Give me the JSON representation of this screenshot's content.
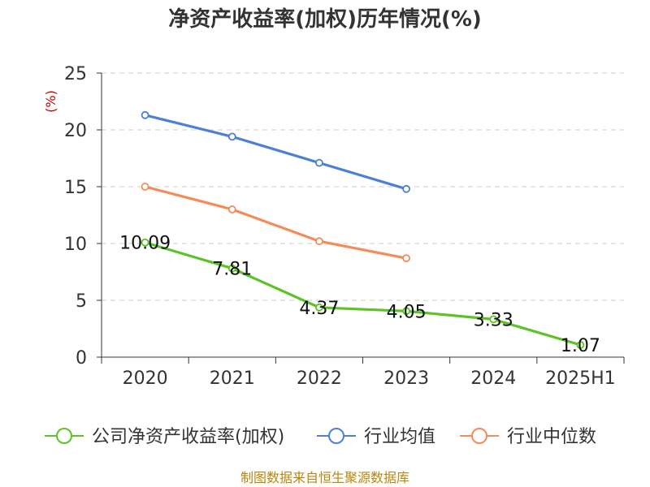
{
  "chart_data": {
    "type": "line",
    "title": "净资产收益率(加权)历年情况(%)",
    "ylabel": "(%)",
    "categories": [
      "2020",
      "2021",
      "2022",
      "2023",
      "2024",
      "2025H1"
    ],
    "ylim": [
      0,
      25
    ],
    "yticks": [
      0,
      5,
      10,
      15,
      20,
      25
    ],
    "grid": true,
    "legend_position": "bottom",
    "series": [
      {
        "name": "公司净资产收益率(加权)",
        "color": "#5cc326",
        "values": [
          10.09,
          7.81,
          4.37,
          4.05,
          3.33,
          1.07
        ],
        "labels": [
          "10.09",
          "7.81",
          "4.37",
          "4.05",
          "3.33",
          "1.07"
        ]
      },
      {
        "name": "行业均值",
        "color": "#4e7fd8",
        "values": [
          21.3,
          19.4,
          17.1,
          14.8,
          null,
          null
        ]
      },
      {
        "name": "行业中位数",
        "color": "#f48c58",
        "values": [
          15.0,
          13.0,
          10.2,
          8.7,
          null,
          null
        ]
      }
    ]
  },
  "source_note": "制图数据来自恒生聚源数据库"
}
